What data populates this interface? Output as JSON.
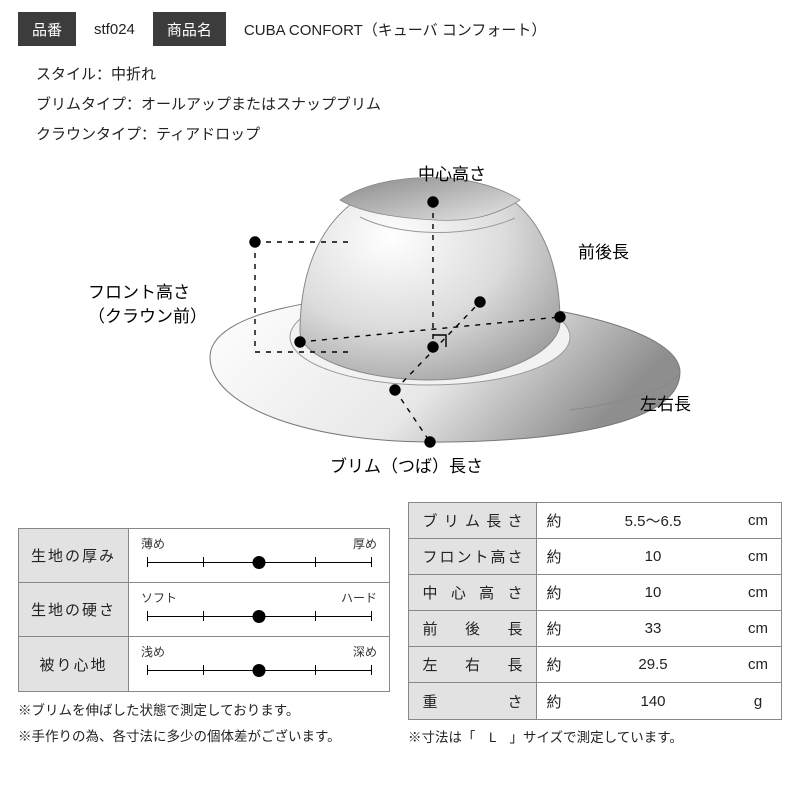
{
  "header": {
    "code_label": "品番",
    "code_value": "stf024",
    "name_label": "商品名",
    "name_value": "CUBA CONFORT（キューバ コンフォート）"
  },
  "spec": {
    "line1": "スタイル：中折れ",
    "line2": "ブリムタイプ：オールアップまたはスナップブリム",
    "line3": "クラウンタイプ：ティアドロップ"
  },
  "diagram_labels": {
    "center_height": "中心高さ",
    "front_back": "前後長",
    "front_height_1": "フロント高さ",
    "front_height_2": "（クラウン前）",
    "left_right": "左右長",
    "brim_length": "ブリム（つば）長さ"
  },
  "sliders": {
    "rows": [
      {
        "label": "生地の厚み",
        "left": "薄め",
        "right": "厚め",
        "value": 0.5
      },
      {
        "label": "生地の硬さ",
        "left": "ソフト",
        "right": "ハード",
        "value": 0.5
      },
      {
        "label": "被り心地",
        "left": "浅め",
        "right": "深め",
        "value": 0.5
      }
    ],
    "ticks": [
      0,
      0.25,
      0.5,
      0.75,
      1.0
    ]
  },
  "measurements": {
    "approx": "約",
    "rows": [
      {
        "name": "ブリム長さ",
        "value": "5.5～6.5",
        "unit": "cm"
      },
      {
        "name": "フロント高さ",
        "value": "10",
        "unit": "cm"
      },
      {
        "name": "中心高さ",
        "value": "10",
        "unit": "cm"
      },
      {
        "name": "前後長",
        "value": "33",
        "unit": "cm"
      },
      {
        "name": "左右長",
        "value": "29.5",
        "unit": "cm"
      },
      {
        "name": "重さ",
        "value": "140",
        "unit": "g"
      }
    ]
  },
  "notes": {
    "left1": "※ブリムを伸ばした状態で測定しております。",
    "left2": "※手作りの為、各寸法に多少の個体差がございます。",
    "right1": "※寸法は「　L　」サイズで測定しています。"
  },
  "colors": {
    "header_bg": "#3c3c3c",
    "cell_bg": "#e2e2e2",
    "border": "#888888",
    "line": "#000000",
    "hat_light": "#ffffff",
    "hat_mid": "#d8d8d8",
    "hat_shadow": "#9a9a9a"
  },
  "diagram_style": {
    "dash": "5,6",
    "dot_r": 5,
    "stroke_w": 1.4
  }
}
